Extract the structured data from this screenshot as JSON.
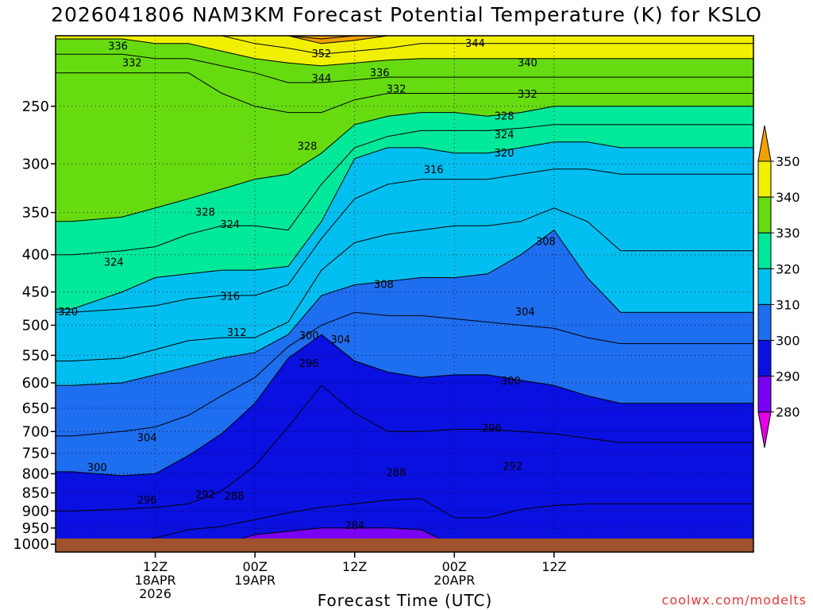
{
  "chart_data": {
    "type": "heatmap",
    "title": "2026041806 NAM3KM Forecast Potential Temperature (K) for KSLO",
    "xlabel": "Forecast Time (UTC)",
    "ylabel": "",
    "x_axis": {
      "range_hours": [
        -12,
        72
      ],
      "ticks": [
        {
          "hour": 0,
          "line1": "12Z",
          "line2": "18APR",
          "line3": "2026"
        },
        {
          "hour": 12,
          "line1": "00Z",
          "line2": "19APR",
          "line3": ""
        },
        {
          "hour": 24,
          "line1": "12Z",
          "line2": "",
          "line3": ""
        },
        {
          "hour": 36,
          "line1": "00Z",
          "line2": "20APR",
          "line3": ""
        },
        {
          "hour": 48,
          "line1": "12Z",
          "line2": "",
          "line3": ""
        }
      ]
    },
    "y_axis": {
      "scale": "pressure (hPa), reversed",
      "ticks": [
        250,
        300,
        350,
        400,
        450,
        500,
        550,
        600,
        650,
        700,
        750,
        800,
        850,
        900,
        950,
        1000
      ],
      "range": [
        200,
        1025
      ]
    },
    "colorbar": {
      "labels": [
        "350",
        "340",
        "330",
        "320",
        "310",
        "300",
        "290",
        "280"
      ],
      "bands": [
        {
          "range": [
            270,
            280
          ],
          "color": "#e600e6"
        },
        {
          "range": [
            280,
            290
          ],
          "color": "#7a00f5"
        },
        {
          "range": [
            290,
            300
          ],
          "color": "#0a10e0"
        },
        {
          "range": [
            300,
            310
          ],
          "color": "#1e6ef0"
        },
        {
          "range": [
            310,
            320
          ],
          "color": "#00bff0"
        },
        {
          "range": [
            320,
            330
          ],
          "color": "#00e89a"
        },
        {
          "range": [
            330,
            340
          ],
          "color": "#66dc10"
        },
        {
          "range": [
            340,
            350
          ],
          "color": "#f0f000"
        },
        {
          "range": [
            350,
            360
          ],
          "color": "#f0a000"
        }
      ]
    },
    "ground_color": "#a0522d",
    "isotherm_pressure_by_time": {
      "times": [
        -10,
        -4,
        0,
        4,
        8,
        12,
        16,
        20,
        24,
        28,
        32,
        36,
        40,
        44,
        48,
        52,
        56
      ],
      "levels": {
        "288": [
          1010,
          1010,
          1010,
          1005,
          1000,
          970,
          960,
          950,
          950,
          950,
          955,
          1005,
          1000,
          1000,
          1005,
          1010,
          1010
        ],
        "292": [
          1000,
          1000,
          980,
          955,
          945,
          925,
          905,
          890,
          880,
          870,
          865,
          920,
          920,
          895,
          885,
          880,
          880
        ],
        "296": [
          900,
          895,
          890,
          880,
          845,
          780,
          690,
          605,
          660,
          700,
          700,
          695,
          695,
          700,
          705,
          715,
          725
        ],
        "300": [
          795,
          805,
          800,
          755,
          705,
          640,
          555,
          515,
          560,
          580,
          590,
          585,
          585,
          595,
          605,
          625,
          640
        ],
        "304": [
          710,
          700,
          690,
          665,
          625,
          590,
          535,
          500,
          480,
          485,
          485,
          490,
          495,
          500,
          505,
          520,
          530
        ],
        "308": [
          605,
          600,
          585,
          570,
          555,
          545,
          515,
          455,
          440,
          435,
          430,
          430,
          425,
          400,
          370,
          430,
          480
        ],
        "312": [
          560,
          555,
          540,
          525,
          520,
          520,
          495,
          420,
          385,
          375,
          370,
          365,
          365,
          360,
          345,
          360,
          395
        ],
        "316": [
          480,
          475,
          470,
          460,
          455,
          455,
          440,
          380,
          335,
          320,
          315,
          315,
          315,
          310,
          305,
          305,
          310
        ],
        "320": [
          475,
          450,
          430,
          425,
          420,
          420,
          415,
          360,
          295,
          285,
          285,
          290,
          290,
          285,
          280,
          280,
          285
        ],
        "324": [
          400,
          395,
          390,
          375,
          365,
          365,
          370,
          320,
          285,
          275,
          270,
          270,
          270,
          268,
          265,
          265,
          265
        ],
        "328": [
          360,
          355,
          345,
          335,
          325,
          315,
          310,
          290,
          265,
          258,
          255,
          255,
          258,
          255,
          250,
          250,
          250
        ],
        "332": [
          225,
          225,
          225,
          225,
          240,
          250,
          255,
          255,
          245,
          240,
          240,
          240,
          240,
          240,
          240,
          240,
          240
        ],
        "336": [
          212,
          212,
          215,
          215,
          220,
          225,
          232,
          232,
          230,
          228,
          228,
          228,
          228,
          228,
          228,
          228,
          228
        ],
        "340": [
          202,
          202,
          205,
          205,
          210,
          215,
          218,
          220,
          218,
          216,
          215,
          215,
          215,
          215,
          215,
          215,
          215
        ],
        "344": [
          200,
          200,
          200,
          200,
          200,
          205,
          208,
          212,
          210,
          208,
          205,
          205,
          205,
          205,
          205,
          205,
          205
        ],
        "348": [
          200,
          200,
          200,
          200,
          200,
          200,
          200,
          205,
          203,
          200,
          200,
          200,
          200,
          200,
          200,
          200,
          200
        ],
        "352": [
          200,
          200,
          200,
          200,
          200,
          200,
          200,
          202,
          200,
          200,
          200,
          200,
          200,
          200,
          200,
          200,
          200
        ]
      }
    },
    "contour_labels": [
      {
        "text": "336",
        "t": -4.5,
        "p": 207
      },
      {
        "text": "332",
        "t": -2.8,
        "p": 218
      },
      {
        "text": "352",
        "t": 20.0,
        "p": 212
      },
      {
        "text": "344",
        "t": 20.0,
        "p": 229
      },
      {
        "text": "344",
        "t": 38.5,
        "p": 205
      },
      {
        "text": "336",
        "t": 27.0,
        "p": 225
      },
      {
        "text": "340",
        "t": 44.8,
        "p": 218
      },
      {
        "text": "332",
        "t": 29.0,
        "p": 237
      },
      {
        "text": "332",
        "t": 44.8,
        "p": 241
      },
      {
        "text": "328",
        "t": 42.0,
        "p": 258
      },
      {
        "text": "324",
        "t": 42.0,
        "p": 274
      },
      {
        "text": "320",
        "t": 42.0,
        "p": 290
      },
      {
        "text": "328",
        "t": 18.3,
        "p": 284
      },
      {
        "text": "316",
        "t": 33.5,
        "p": 306
      },
      {
        "text": "328",
        "t": 6.0,
        "p": 350
      },
      {
        "text": "324",
        "t": 9.0,
        "p": 364
      },
      {
        "text": "324",
        "t": -5.0,
        "p": 410
      },
      {
        "text": "308",
        "t": 47.0,
        "p": 384
      },
      {
        "text": "316",
        "t": 9.0,
        "p": 457
      },
      {
        "text": "308",
        "t": 27.5,
        "p": 440
      },
      {
        "text": "320",
        "t": -10.5,
        "p": 480
      },
      {
        "text": "304",
        "t": 44.5,
        "p": 480
      },
      {
        "text": "312",
        "t": 9.8,
        "p": 512
      },
      {
        "text": "300",
        "t": 18.5,
        "p": 517
      },
      {
        "text": "304",
        "t": 22.3,
        "p": 524
      },
      {
        "text": "296",
        "t": 18.5,
        "p": 565
      },
      {
        "text": "300",
        "t": 42.8,
        "p": 597
      },
      {
        "text": "296",
        "t": 40.5,
        "p": 693
      },
      {
        "text": "304",
        "t": -1.0,
        "p": 715
      },
      {
        "text": "292",
        "t": 43.0,
        "p": 782
      },
      {
        "text": "288",
        "t": 29.0,
        "p": 798
      },
      {
        "text": "300",
        "t": -7.0,
        "p": 785
      },
      {
        "text": "292",
        "t": 6.0,
        "p": 855
      },
      {
        "text": "288",
        "t": 9.5,
        "p": 860
      },
      {
        "text": "296",
        "t": -1.0,
        "p": 870
      },
      {
        "text": "284",
        "t": 24.0,
        "p": 943
      }
    ]
  },
  "footer": {
    "credit": "coolwx.com/modelts"
  }
}
